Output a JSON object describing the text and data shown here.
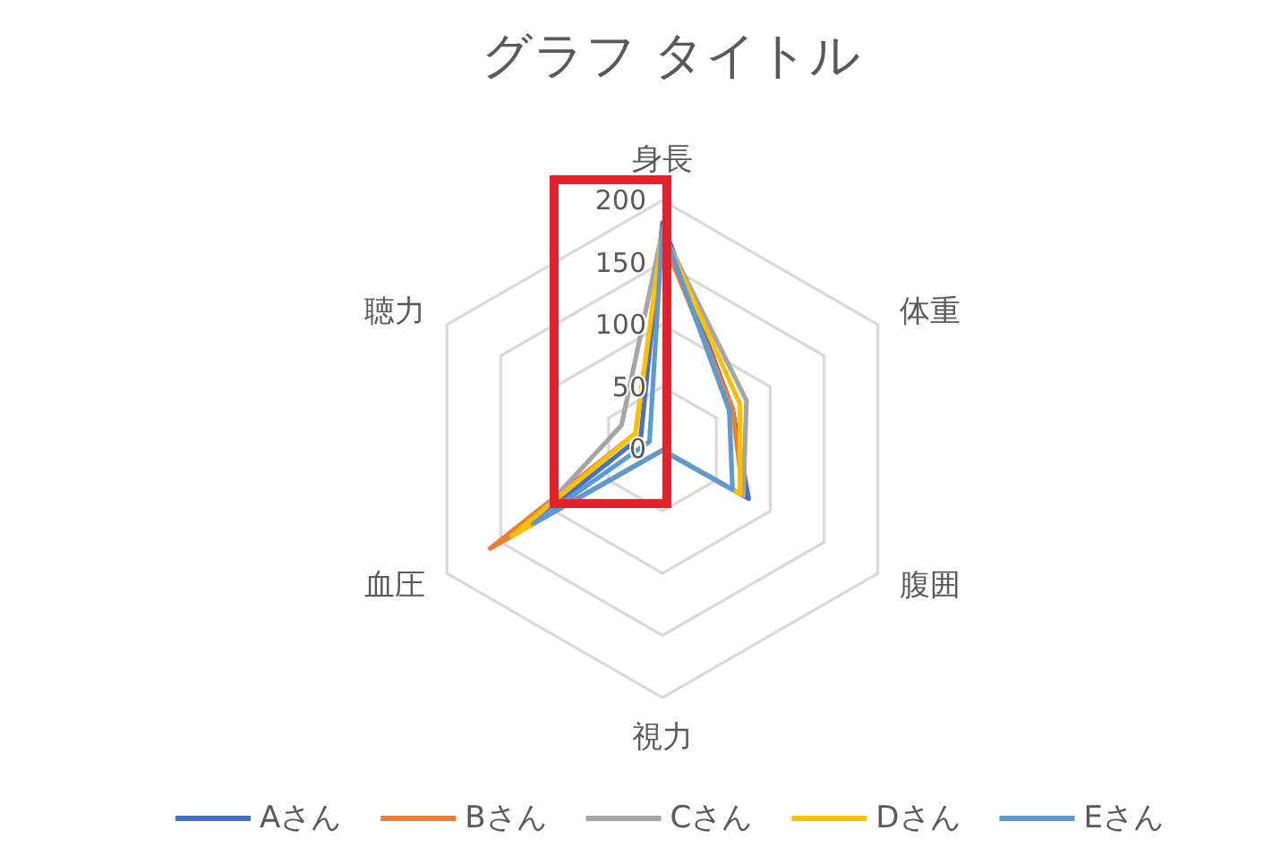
{
  "chart_data": {
    "type": "radar",
    "title": "グラフ タイトル",
    "categories": [
      "身長",
      "体重",
      "腹囲",
      "視力",
      "血圧",
      "聴力"
    ],
    "series": [
      {
        "name": "Aさん",
        "color": "#4472c4",
        "values": [
          182,
          65,
          80,
          1,
          125,
          20
        ]
      },
      {
        "name": "Bさん",
        "color": "#ed7d31",
        "values": [
          170,
          65,
          75,
          1,
          160,
          25
        ]
      },
      {
        "name": "Cさん",
        "color": "#a5a5a5",
        "values": [
          175,
          78,
          75,
          1,
          125,
          38
        ]
      },
      {
        "name": "Dさん",
        "color": "#ffc000",
        "values": [
          175,
          72,
          72,
          1,
          140,
          25
        ]
      },
      {
        "name": "Eさん",
        "color": "#5b9bd5",
        "values": [
          178,
          62,
          65,
          1,
          120,
          12
        ]
      }
    ],
    "ylim": [
      0,
      200
    ],
    "yticks": [
      0,
      50,
      100,
      150,
      200
    ],
    "grid": true,
    "legend": "bottom",
    "marker": "none",
    "line_style": "solid"
  }
}
